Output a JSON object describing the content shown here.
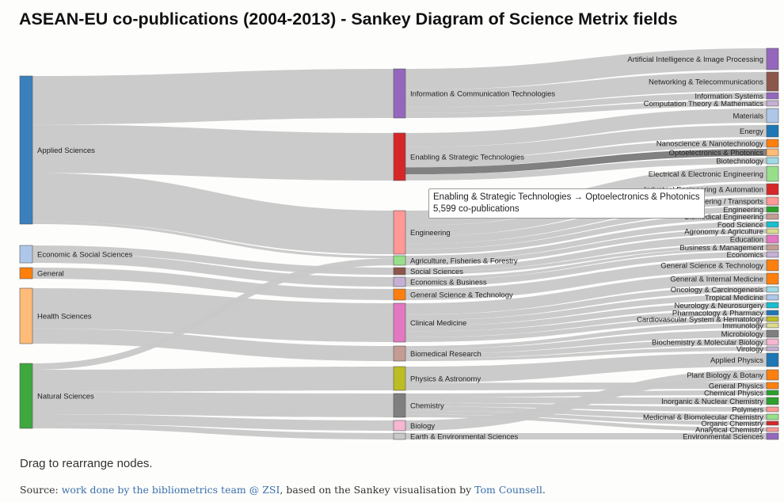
{
  "title": "ASEAN-EU co-publications (2004-2013) - Sankey Diagram of Science Metrix fields",
  "hint": "Drag to rearrange nodes.",
  "source": {
    "prefix": "Source: ",
    "link1": "work done by the bibliometrics team @ ZSI",
    "middle": ", based on the Sankey visualisation by ",
    "link2": "Tom Counsell",
    "suffix": "."
  },
  "tooltip": {
    "line1": "Enabling & Strategic Technologies → Optoelectronics & Photonics",
    "line2": "5,599 co-publications"
  },
  "colors": {
    "link": "#c8c8c8",
    "link_highlight": "#7a7a7a"
  },
  "diagram": {
    "level1": [
      {
        "label": "Applied Sciences",
        "color": "#3a80bd"
      },
      {
        "label": "Economic & Social Sciences",
        "color": "#aec7e8"
      },
      {
        "label": "General",
        "color": "#ff7f0e"
      },
      {
        "label": "Health Sciences",
        "color": "#ffbb78"
      },
      {
        "label": "Natural Sciences",
        "color": "#3ea83e"
      }
    ],
    "level2": [
      {
        "label": "Information & Communication Technologies",
        "color": "#9467bd"
      },
      {
        "label": "Enabling & Strategic Technologies",
        "color": "#d62728"
      },
      {
        "label": "Engineering",
        "color": "#ff9896"
      },
      {
        "label": "Agriculture, Fisheries & Forestry",
        "color": "#98df8a"
      },
      {
        "label": "Social Sciences",
        "color": "#8c564b"
      },
      {
        "label": "Economics & Business",
        "color": "#c5b0d5"
      },
      {
        "label": "General Science & Technology",
        "color": "#ff7f0e"
      },
      {
        "label": "Clinical Medicine",
        "color": "#e377c2"
      },
      {
        "label": "Biomedical Research",
        "color": "#c49c94"
      },
      {
        "label": "Physics & Astronomy",
        "color": "#bcbd22"
      },
      {
        "label": "Chemistry",
        "color": "#7f7f7f"
      },
      {
        "label": "Biology",
        "color": "#f7b6d2"
      },
      {
        "label": "Earth & Environmental Sciences",
        "color": "#c7c7c7"
      }
    ],
    "level3": [
      {
        "label": "Artificial Intelligence & Image Processing",
        "color": "#9467bd"
      },
      {
        "label": "Networking & Telecommunications",
        "color": "#8c564b"
      },
      {
        "label": "Information Systems",
        "color": "#9467bd"
      },
      {
        "label": "Computation Theory & Mathematics",
        "color": "#c5b0d5"
      },
      {
        "label": "Materials",
        "color": "#aec7e8"
      },
      {
        "label": "Energy",
        "color": "#1f77b4"
      },
      {
        "label": "Nanoscience & Nanotechnology",
        "color": "#ff7f0e"
      },
      {
        "label": "Optoelectronics & Photonics",
        "color": "#ffbb78"
      },
      {
        "label": "Biotechnology",
        "color": "#9edae5"
      },
      {
        "label": "Electrical & Electronic Engineering",
        "color": "#98df8a"
      },
      {
        "label": "Industrial Engineering & Automation",
        "color": "#d62728"
      },
      {
        "label": "Automobile Design & Engineering / Transports",
        "color": "#ff9896"
      },
      {
        "label": "Engineering",
        "color": "#2ca02c"
      },
      {
        "label": "Biomedical Engineering",
        "color": "#c49c94"
      },
      {
        "label": "Food Science",
        "color": "#17becf"
      },
      {
        "label": "Agronomy & Agriculture",
        "color": "#dbdb8d"
      },
      {
        "label": "Education",
        "color": "#e377c2"
      },
      {
        "label": "Business & Management",
        "color": "#c49c94"
      },
      {
        "label": "Economics",
        "color": "#c5b0d5"
      },
      {
        "label": "General Science & Technology",
        "color": "#ff7f0e"
      },
      {
        "label": "General & Internal Medicine",
        "color": "#ff7f0e"
      },
      {
        "label": "Oncology & Carcinogenesis",
        "color": "#9edae5"
      },
      {
        "label": "Tropical Medicine",
        "color": "#aec7e8"
      },
      {
        "label": "Neurology & Neurosurgery",
        "color": "#17becf"
      },
      {
        "label": "Pharmacology & Pharmacy",
        "color": "#1f77b4"
      },
      {
        "label": "Cardiovascular System & Hematology",
        "color": "#bcbd22"
      },
      {
        "label": "Immunology",
        "color": "#dbdb8d"
      },
      {
        "label": "Microbiology",
        "color": "#7f7f7f"
      },
      {
        "label": "Biochemistry & Molecular Biology",
        "color": "#f7b6d2"
      },
      {
        "label": "Virology",
        "color": "#c5b0d5"
      },
      {
        "label": "Applied Physics",
        "color": "#1f77b4"
      },
      {
        "label": "Plant Biology & Botany",
        "color": "#ff7f0e"
      },
      {
        "label": "General Physics",
        "color": "#ff7f0e"
      },
      {
        "label": "Chemical Physics",
        "color": "#2ca02c"
      },
      {
        "label": "Inorganic & Nuclear Chemistry",
        "color": "#2ca02c"
      },
      {
        "label": "Polymers",
        "color": "#ff9896"
      },
      {
        "label": "Medicinal & Biomolecular Chemistry",
        "color": "#98df8a"
      },
      {
        "label": "Organic Chemistry",
        "color": "#d62728"
      },
      {
        "label": "Analytical Chemistry",
        "color": "#ff9896"
      },
      {
        "label": "Environmental Sciences",
        "color": "#9467bd"
      }
    ]
  }
}
